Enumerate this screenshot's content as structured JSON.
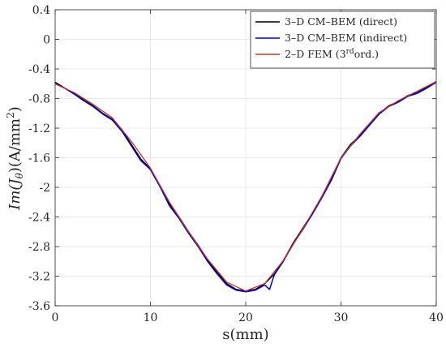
{
  "chart_data": {
    "type": "line",
    "xlabel": "s(mm)",
    "ylabel": "Im(J_θ)(A/mm²)",
    "ylabel_parts": {
      "main": "Im(J",
      "sub": "θ",
      "mid": ")(A/mm",
      "sup": "2",
      "end": ")"
    },
    "xlim": [
      0,
      40
    ],
    "ylim": [
      -3.6,
      0.4
    ],
    "xticks": [
      0,
      10,
      20,
      30,
      40
    ],
    "xtick_labels": [
      "0",
      "10",
      "20",
      "30",
      "40"
    ],
    "yticks": [
      0.4,
      0,
      -0.4,
      -0.8,
      -1.2,
      -1.6,
      -2,
      -2.4,
      -2.8,
      -3.2,
      -3.6
    ],
    "ytick_labels": [
      "0.4",
      "0",
      "-0.4",
      "-0.8",
      "-1.2",
      "-1.6",
      "-2",
      "-2.4",
      "-2.8",
      "-3.2",
      "-3.6"
    ],
    "grid": true,
    "legend_position": "top-right",
    "series": [
      {
        "name": "3–D CM–BEM (direct)",
        "legend_parts": {
          "main": "3–D CM–BEM (direct)"
        },
        "color": "#000000",
        "x": [
          0,
          1,
          2,
          3,
          4,
          5,
          6,
          7,
          8,
          9,
          10,
          11,
          12,
          13,
          14,
          15,
          16,
          17,
          18,
          19,
          20,
          21,
          22,
          23,
          24,
          25,
          26,
          27,
          28,
          29,
          30,
          31,
          32,
          33,
          34,
          35,
          36,
          37,
          38,
          39,
          40
        ],
        "y": [
          -0.58,
          -0.66,
          -0.73,
          -0.82,
          -0.9,
          -1.0,
          -1.08,
          -1.22,
          -1.42,
          -1.62,
          -1.75,
          -1.98,
          -2.22,
          -2.4,
          -2.6,
          -2.78,
          -2.98,
          -3.15,
          -3.3,
          -3.38,
          -3.4,
          -3.38,
          -3.3,
          -3.17,
          -2.98,
          -2.75,
          -2.55,
          -2.35,
          -2.12,
          -1.88,
          -1.6,
          -1.42,
          -1.3,
          -1.15,
          -1.0,
          -0.9,
          -0.84,
          -0.76,
          -0.72,
          -0.65,
          -0.57
        ]
      },
      {
        "name": "3–D CM–BEM (indirect)",
        "legend_parts": {
          "main": "3–D CM–BEM (indirect)"
        },
        "color": "#0000cc",
        "x": [
          0,
          1,
          2,
          3,
          4,
          5,
          6,
          7,
          8,
          9,
          10,
          11,
          12,
          13,
          14,
          15,
          16,
          17,
          18,
          19,
          20,
          21,
          22,
          22.5,
          23,
          24,
          25,
          26,
          27,
          28,
          29,
          30,
          31,
          32,
          33,
          34,
          35,
          36,
          37,
          38,
          39,
          40
        ],
        "y": [
          -0.6,
          -0.66,
          -0.74,
          -0.83,
          -0.91,
          -1.01,
          -1.09,
          -1.24,
          -1.44,
          -1.64,
          -1.76,
          -1.99,
          -2.25,
          -2.42,
          -2.62,
          -2.8,
          -3.0,
          -3.17,
          -3.32,
          -3.39,
          -3.41,
          -3.39,
          -3.32,
          -3.38,
          -3.18,
          -2.99,
          -2.76,
          -2.57,
          -2.36,
          -2.14,
          -1.9,
          -1.61,
          -1.44,
          -1.31,
          -1.16,
          -1.01,
          -0.91,
          -0.85,
          -0.77,
          -0.73,
          -0.66,
          -0.58
        ]
      },
      {
        "name": "2–D FEM (3rd ord.)",
        "legend_parts": {
          "main": "2–D FEM (3",
          "sup": "rd",
          "end": "ord.)"
        },
        "color": "#c0392b",
        "x": [
          0,
          2,
          4,
          6,
          8,
          10,
          12,
          14,
          16,
          18,
          20,
          22,
          24,
          26,
          28,
          30,
          32,
          34,
          36,
          38,
          40
        ],
        "y": [
          -0.6,
          -0.72,
          -0.88,
          -1.06,
          -1.38,
          -1.74,
          -2.2,
          -2.6,
          -2.97,
          -3.28,
          -3.4,
          -3.3,
          -2.98,
          -2.56,
          -2.12,
          -1.6,
          -1.28,
          -0.99,
          -0.83,
          -0.7,
          -0.57
        ]
      }
    ]
  }
}
